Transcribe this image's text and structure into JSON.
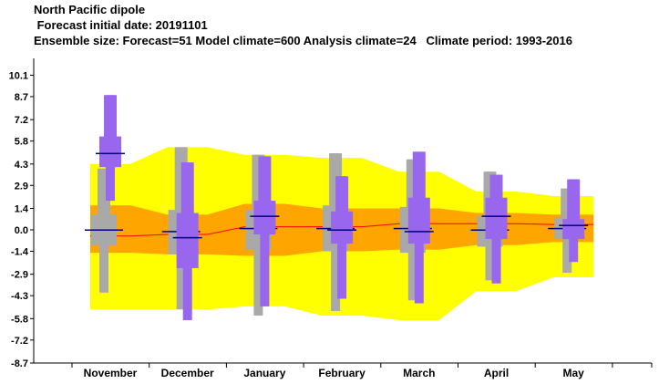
{
  "header": {
    "title": "North Pacific dipole",
    "subtitle": " Forecast initial date: 20191101",
    "info": "Ensemble size: Forecast=51 Model climate=600 Analysis climate=24   Climate period: 1993-2016"
  },
  "chart_data": {
    "type": "box",
    "categories": [
      "November",
      "December",
      "January",
      "February",
      "March",
      "April",
      "May"
    ],
    "ylim": [
      -8.7,
      11.2
    ],
    "yticks": [
      "10.1",
      "8.7",
      "7.2",
      "5.8",
      "4.3",
      "2.9",
      "1.4",
      "0.0",
      "-1.4",
      "-2.9",
      "-4.3",
      "-5.8",
      "-7.2",
      "-8.7"
    ],
    "climate_extremes": {
      "upper": [
        4.3,
        5.4,
        4.9,
        4.7,
        3.8,
        2.5,
        2.2
      ],
      "lower": [
        -5.2,
        -5.2,
        -5.0,
        -5.6,
        -5.9,
        -4.0,
        -3.1
      ]
    },
    "climate_terciles": {
      "upper": [
        1.6,
        1.0,
        1.7,
        1.4,
        1.4,
        1.1,
        1.0
      ],
      "lower": [
        -1.5,
        -1.6,
        -1.7,
        -1.4,
        -1.3,
        -1.0,
        -0.8
      ],
      "median": [
        -0.4,
        -0.3,
        0.2,
        0.2,
        0.4,
        0.4,
        0.35
      ]
    },
    "model_climate": [
      {
        "min": -4.1,
        "p10": -1.0,
        "p25": -1.0,
        "median": 0.0,
        "p75": 1.0,
        "p90": 4.0,
        "max": 4.0
      },
      {
        "min": -5.2,
        "p10": -1.6,
        "p25": -1.6,
        "median": -0.1,
        "p75": 1.3,
        "p90": 5.4,
        "max": 5.4
      },
      {
        "min": -5.6,
        "p10": -1.3,
        "p25": -1.3,
        "median": 0.1,
        "p75": 1.3,
        "p90": 4.9,
        "max": 4.9
      },
      {
        "min": -5.3,
        "p10": -1.4,
        "p25": -1.4,
        "median": 0.1,
        "p75": 1.6,
        "p90": 5.0,
        "max": 5.0
      },
      {
        "min": -4.6,
        "p10": -1.5,
        "p25": -1.5,
        "median": 0.1,
        "p75": 1.5,
        "p90": 4.6,
        "max": 4.6
      },
      {
        "min": -3.3,
        "p10": -1.1,
        "p25": -1.1,
        "median": 0.0,
        "p75": 0.9,
        "p90": 3.8,
        "max": 3.8
      },
      {
        "min": -2.8,
        "p10": -0.6,
        "p25": -0.6,
        "median": 0.1,
        "p75": 0.8,
        "p90": 2.7,
        "max": 2.7
      }
    ],
    "forecast": [
      {
        "min": 1.9,
        "p10": 4.1,
        "p25": 4.1,
        "median": 5.0,
        "p75": 6.1,
        "p90": 8.8,
        "max": 8.8
      },
      {
        "min": -5.9,
        "p10": -2.5,
        "p25": -2.5,
        "median": -0.5,
        "p75": 1.1,
        "p90": 4.4,
        "max": 4.4
      },
      {
        "min": -5.0,
        "p10": -0.3,
        "p25": -0.3,
        "median": 0.9,
        "p75": 1.9,
        "p90": 4.8,
        "max": 4.8
      },
      {
        "min": -4.5,
        "p10": -0.9,
        "p25": -0.9,
        "median": 0.0,
        "p75": 1.2,
        "p90": 3.5,
        "max": 3.5
      },
      {
        "min": -4.8,
        "p10": -0.9,
        "p25": -0.9,
        "median": -0.1,
        "p75": 2.1,
        "p90": 5.1,
        "max": 5.1
      },
      {
        "min": -3.5,
        "p10": -0.6,
        "p25": -0.6,
        "median": 0.9,
        "p75": 2.1,
        "p90": 3.6,
        "max": 3.6
      },
      {
        "min": -2.1,
        "p10": -0.6,
        "p25": -0.6,
        "median": 0.3,
        "p75": 0.7,
        "p90": 3.3,
        "max": 3.3
      }
    ],
    "colors": {
      "climate_extremes": "#ffff00",
      "climate_terciles": "#ffa500",
      "climate_median_line": "#ff0000",
      "model_climate_box": "#a9a9a9",
      "forecast_box": "#9966ee",
      "median_tick": "#000080"
    }
  }
}
